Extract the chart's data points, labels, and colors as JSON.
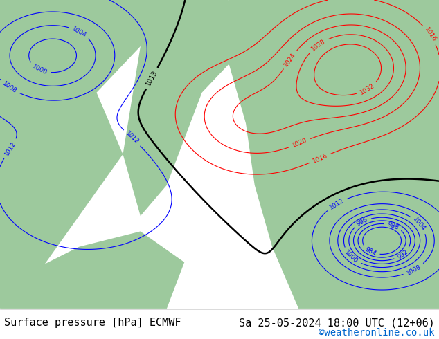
{
  "title_left": "Surface pressure [hPa] ECMWF",
  "title_right": "Sa 25-05-2024 18:00 UTC (12+06)",
  "credit": "©weatheronline.co.uk",
  "credit_color": "#0066cc",
  "bg_color": "#ffffff",
  "footer_text_color": "#000000",
  "footer_fontsize": 11,
  "credit_fontsize": 10,
  "fig_width": 6.34,
  "fig_height": 4.9,
  "dpi": 100
}
